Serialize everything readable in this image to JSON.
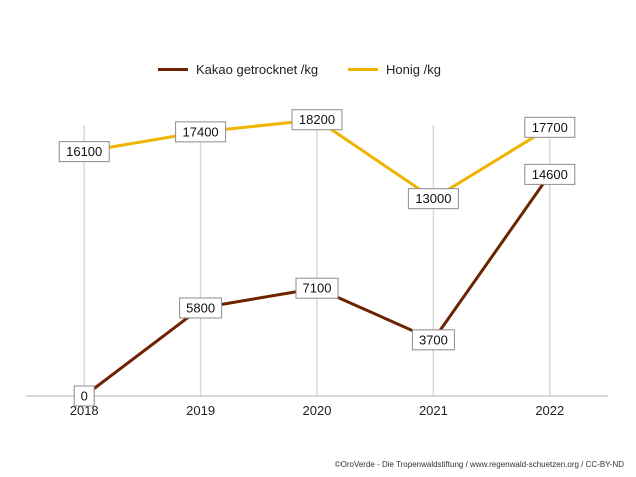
{
  "chart_data": {
    "type": "line",
    "title": "",
    "xlabel": "",
    "ylabel": "",
    "categories": [
      "2018",
      "2019",
      "2020",
      "2021",
      "2022"
    ],
    "ylim": [
      0,
      19500
    ],
    "grid": "vertical",
    "legend_position": "top",
    "series": [
      {
        "name": "Kakao getrocknet /kg",
        "color": "#6b2300",
        "values": [
          0,
          5800,
          7100,
          3700,
          14600
        ]
      },
      {
        "name": "Honig /kg",
        "color": "#f0b400",
        "values": [
          16100,
          17400,
          18200,
          13000,
          17700
        ]
      }
    ]
  },
  "credit": "©OroVerde - Die Tropenwaldstiftung / www.regenwald-schuetzen.org / CC-BY-ND"
}
